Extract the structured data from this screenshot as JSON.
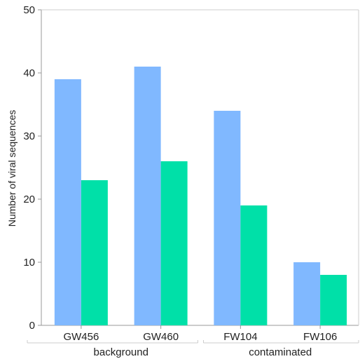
{
  "chart_data": {
    "type": "bar",
    "title": "",
    "xlabel": "",
    "ylabel": "Number of viral sequences",
    "ylim": [
      0,
      50
    ],
    "yticks": [
      0,
      10,
      20,
      30,
      40,
      50
    ],
    "categories": [
      "GW456",
      "GW460",
      "FW104",
      "FW106"
    ],
    "groups": [
      {
        "label": "background",
        "categories": [
          "GW456",
          "GW460"
        ]
      },
      {
        "label": "contaminated",
        "categories": [
          "FW104",
          "FW106"
        ]
      }
    ],
    "series": [
      {
        "values": [
          39,
          41,
          34,
          10
        ],
        "color": "#80b8ff"
      },
      {
        "values": [
          23,
          26,
          19,
          8
        ],
        "color": "#00e0a8"
      }
    ],
    "grid": false,
    "legend": "none",
    "colors": {
      "axis": "#999999",
      "text": "#222222"
    }
  }
}
